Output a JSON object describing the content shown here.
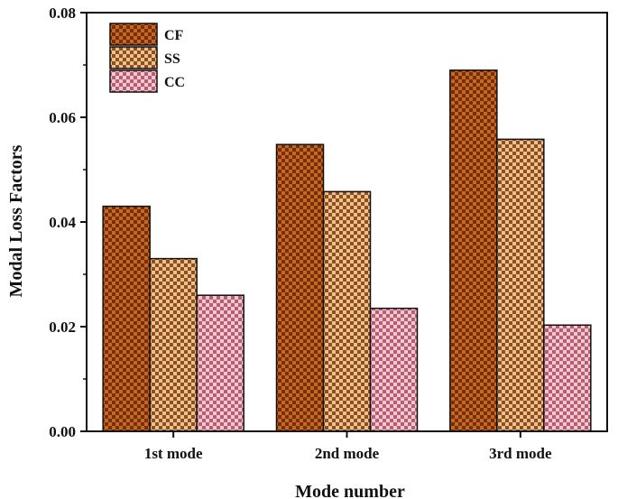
{
  "chart_data": {
    "type": "bar",
    "title": "",
    "xlabel": "Mode number",
    "ylabel": "Modal Loss Factors",
    "categories": [
      "1st mode",
      "2nd mode",
      "3rd mode"
    ],
    "series": [
      {
        "name": "CF",
        "values": [
          0.043,
          0.0548,
          0.069
        ],
        "color": "#7a2e00",
        "pattern_light": "#c2692a"
      },
      {
        "name": "SS",
        "values": [
          0.033,
          0.0458,
          0.0558
        ],
        "color": "#8a4f22",
        "pattern_light": "#f0c08a"
      },
      {
        "name": "CC",
        "values": [
          0.026,
          0.0235,
          0.0203
        ],
        "color": "#b06070",
        "pattern_light": "#f7c6d0"
      }
    ],
    "ylim": [
      0,
      0.08
    ],
    "yticks": [
      "0.00",
      "0.02",
      "0.04",
      "0.06",
      "0.08"
    ],
    "grid": false,
    "legend_position": "top-left"
  }
}
